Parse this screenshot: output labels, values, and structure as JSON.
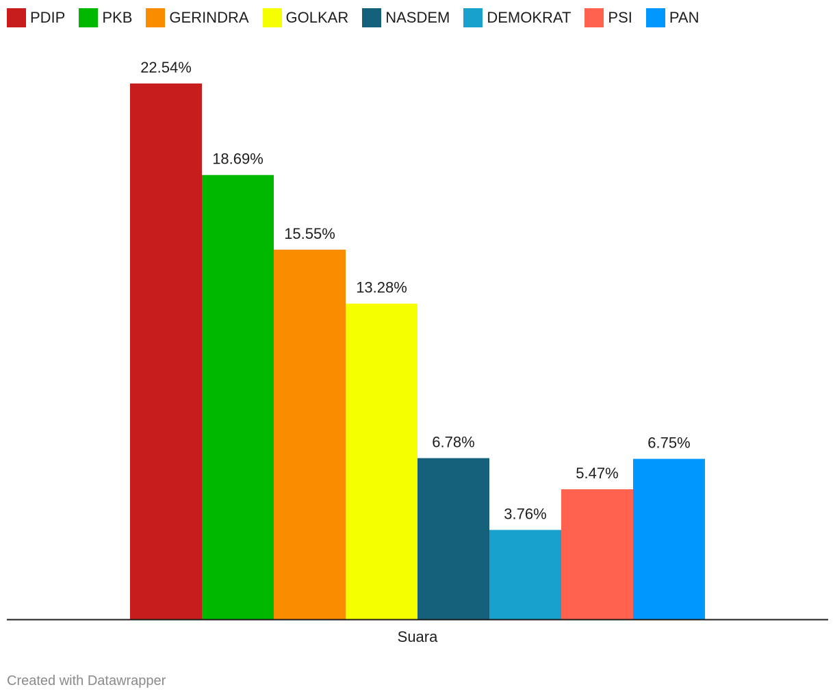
{
  "chart_data": {
    "type": "bar",
    "categories": [
      "Suara"
    ],
    "series": [
      {
        "name": "PDIP",
        "values": [
          22.54
        ],
        "label": "22.54%",
        "color": "#c71e1d"
      },
      {
        "name": "PKB",
        "values": [
          18.69
        ],
        "label": "18.69%",
        "color": "#00b800"
      },
      {
        "name": "GERINDRA",
        "values": [
          15.55
        ],
        "label": "15.55%",
        "color": "#fa8c00"
      },
      {
        "name": "GOLKAR",
        "values": [
          13.28
        ],
        "label": "13.28%",
        "color": "#f5ff00"
      },
      {
        "name": "NASDEM",
        "values": [
          6.78
        ],
        "label": "6.78%",
        "color": "#15607a"
      },
      {
        "name": "DEMOKRAT",
        "values": [
          3.76
        ],
        "label": "3.76%",
        "color": "#18a1cd"
      },
      {
        "name": "PSI",
        "values": [
          5.47
        ],
        "label": "5.47%",
        "color": "#ff624f"
      },
      {
        "name": "PAN",
        "values": [
          6.75
        ],
        "label": "6.75%",
        "color": "#0098ff"
      }
    ],
    "ylim": [
      0,
      22.54
    ],
    "grid": false,
    "legend_position": "top-left"
  },
  "footer": {
    "credit": "Created with Datawrapper"
  }
}
